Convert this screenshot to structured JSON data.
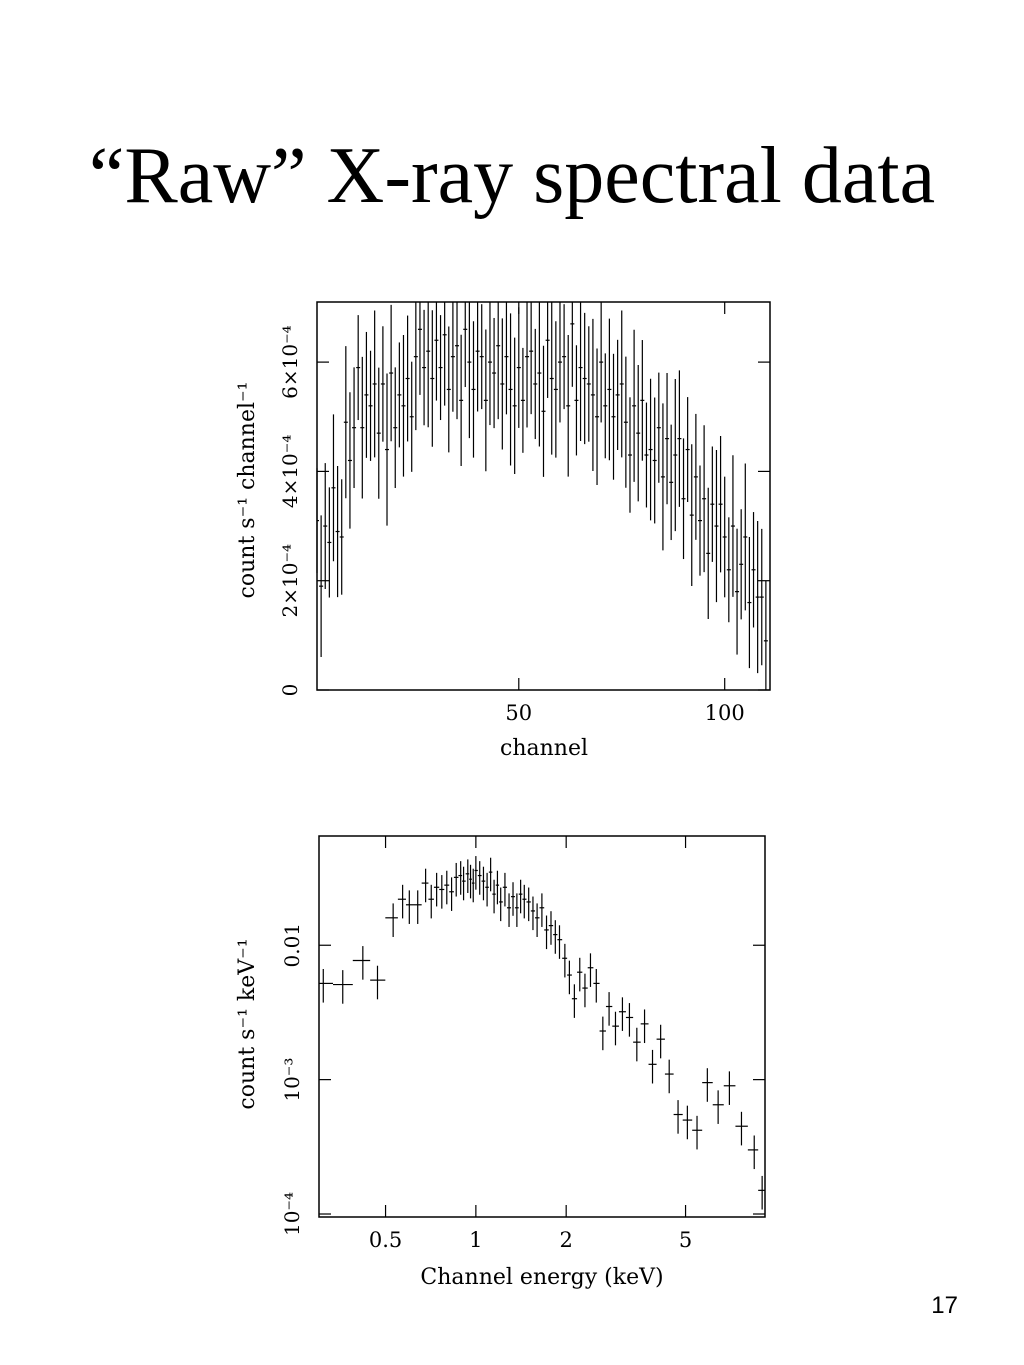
{
  "title": "“Raw” X-ray spectral data",
  "page_number": "17",
  "chart_data": [
    {
      "type": "scatter",
      "xlabel": "channel",
      "ylabel": "count s⁻¹ channel⁻¹",
      "xlim": [
        1,
        111
      ],
      "ylim": [
        0,
        0.00071
      ],
      "xticks": [
        {
          "v": 50,
          "label": "50"
        },
        {
          "v": 100,
          "label": "100"
        }
      ],
      "yticks": [
        {
          "v": 0,
          "label": "0"
        },
        {
          "v": 0.0002,
          "label": "2×10⁻⁴"
        },
        {
          "v": 0.0004,
          "label": "4×10⁻⁴"
        },
        {
          "v": 0.0006,
          "label": "6×10⁻⁴"
        }
      ],
      "x": [
        1,
        2,
        3,
        4,
        5,
        6,
        7,
        8,
        9,
        10,
        11,
        12,
        13,
        14,
        15,
        16,
        17,
        18,
        19,
        20,
        21,
        22,
        23,
        24,
        25,
        26,
        27,
        28,
        29,
        30,
        31,
        32,
        33,
        34,
        35,
        36,
        37,
        38,
        39,
        40,
        41,
        42,
        43,
        44,
        45,
        46,
        47,
        48,
        49,
        50,
        51,
        52,
        53,
        54,
        55,
        56,
        57,
        58,
        59,
        60,
        61,
        62,
        63,
        64,
        65,
        66,
        67,
        68,
        69,
        70,
        71,
        72,
        73,
        74,
        75,
        76,
        77,
        78,
        79,
        80,
        81,
        82,
        83,
        84,
        85,
        86,
        87,
        88,
        89,
        90,
        91,
        92,
        93,
        94,
        95,
        96,
        97,
        98,
        99,
        100,
        101,
        102,
        103,
        104,
        105,
        106,
        107,
        108,
        109,
        110
      ],
      "y": [
        0.00031,
        0.00019,
        0.0003,
        0.00027,
        0.00037,
        0.00029,
        0.00028,
        0.00049,
        0.00042,
        0.00048,
        0.00059,
        0.00048,
        0.00054,
        0.00052,
        0.00056,
        0.00047,
        0.00056,
        0.00044,
        0.00058,
        0.00048,
        0.00054,
        0.00052,
        0.00057,
        0.0005,
        0.00061,
        0.00066,
        0.00059,
        0.00062,
        0.00057,
        0.00064,
        0.00059,
        0.00065,
        0.00055,
        0.00061,
        0.00063,
        0.00053,
        0.00066,
        0.0006,
        0.00055,
        0.00062,
        0.00061,
        0.00053,
        0.0006,
        0.00058,
        0.00063,
        0.00056,
        0.00061,
        0.00055,
        0.00052,
        0.00059,
        0.00053,
        0.00061,
        0.00062,
        0.00056,
        0.00058,
        0.00051,
        0.00064,
        0.00057,
        0.00055,
        0.0006,
        0.00061,
        0.00052,
        0.00067,
        0.00053,
        0.00059,
        0.00057,
        0.00056,
        0.00054,
        0.0005,
        0.0006,
        0.00052,
        0.00055,
        0.0005,
        0.00054,
        0.00056,
        0.00049,
        0.00043,
        0.00052,
        0.00047,
        0.00053,
        0.00043,
        0.00044,
        0.00042,
        0.00048,
        0.00039,
        0.00046,
        0.00038,
        0.00043,
        0.00046,
        0.00035,
        0.00044,
        0.00032,
        0.00039,
        0.00031,
        0.00035,
        0.00025,
        0.00034,
        0.0003,
        0.00034,
        0.00028,
        0.00022,
        0.0003,
        0.00018,
        0.00023,
        0.00028,
        0.00016,
        0.00022,
        0.00017,
        0.00017,
        9e-05
      ],
      "err": 0.00012
    },
    {
      "type": "scatter",
      "xlabel": "Channel energy (keV)",
      "ylabel": "count s⁻¹ keV⁻¹",
      "xscale": "log",
      "yscale": "log",
      "xlim": [
        0.3,
        9.2
      ],
      "ylim": [
        9.5e-05,
        0.065
      ],
      "xticks": [
        {
          "v": 0.5,
          "label": "0.5"
        },
        {
          "v": 1,
          "label": "1"
        },
        {
          "v": 2,
          "label": "2"
        },
        {
          "v": 5,
          "label": "5"
        }
      ],
      "yticks": [
        {
          "v": 0.0001,
          "label": "10⁻⁴"
        },
        {
          "v": 0.001,
          "label": "10⁻³"
        },
        {
          "v": 0.01,
          "label": "0.01"
        }
      ],
      "x": [
        0.31,
        0.36,
        0.42,
        0.47,
        0.53,
        0.57,
        0.6,
        0.64,
        0.68,
        0.71,
        0.74,
        0.77,
        0.8,
        0.83,
        0.86,
        0.89,
        0.91,
        0.94,
        0.96,
        0.98,
        1.0,
        1.03,
        1.06,
        1.09,
        1.12,
        1.15,
        1.18,
        1.21,
        1.25,
        1.29,
        1.33,
        1.37,
        1.41,
        1.45,
        1.5,
        1.55,
        1.6,
        1.66,
        1.72,
        1.78,
        1.84,
        1.9,
        1.98,
        2.05,
        2.13,
        2.22,
        2.31,
        2.41,
        2.52,
        2.65,
        2.78,
        2.92,
        3.08,
        3.25,
        3.44,
        3.65,
        3.88,
        4.13,
        4.41,
        4.72,
        5.07,
        5.46,
        5.91,
        6.42,
        7.0,
        7.68,
        8.47,
        9.0
      ],
      "y": [
        0.0052,
        0.0051,
        0.0077,
        0.0055,
        0.016,
        0.022,
        0.02,
        0.02,
        0.029,
        0.022,
        0.027,
        0.026,
        0.028,
        0.025,
        0.032,
        0.033,
        0.03,
        0.034,
        0.031,
        0.029,
        0.036,
        0.033,
        0.03,
        0.027,
        0.035,
        0.024,
        0.028,
        0.021,
        0.027,
        0.019,
        0.023,
        0.019,
        0.024,
        0.022,
        0.021,
        0.018,
        0.016,
        0.019,
        0.013,
        0.014,
        0.012,
        0.011,
        0.008,
        0.006,
        0.004,
        0.0063,
        0.0048,
        0.0068,
        0.0052,
        0.0023,
        0.0035,
        0.0025,
        0.0032,
        0.0029,
        0.0019,
        0.0026,
        0.0013,
        0.002,
        0.0011,
        0.00055,
        0.0005,
        0.00042,
        0.00095,
        0.00065,
        0.0009,
        0.00045,
        0.0003,
        0.00015
      ],
      "err_frac": 0.28
    }
  ]
}
